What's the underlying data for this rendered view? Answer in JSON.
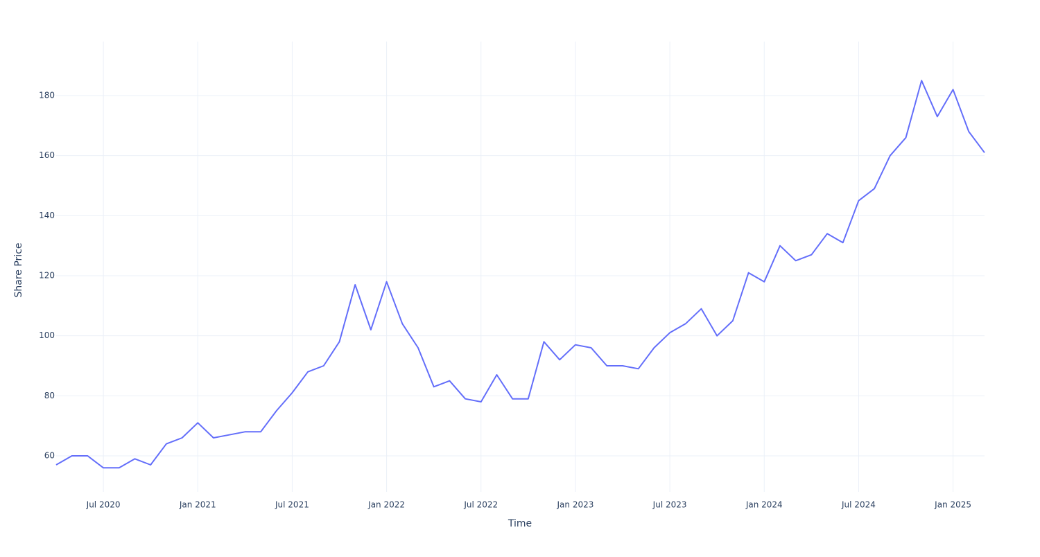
{
  "chart_data": {
    "type": "line",
    "x_label": "Time",
    "y_label": "Share Price",
    "x": [
      "2020-04",
      "2020-05",
      "2020-06",
      "2020-07",
      "2020-08",
      "2020-09",
      "2020-10",
      "2020-11",
      "2020-12",
      "2021-01",
      "2021-02",
      "2021-03",
      "2021-04",
      "2021-05",
      "2021-06",
      "2021-07",
      "2021-08",
      "2021-09",
      "2021-10",
      "2021-11",
      "2021-12",
      "2022-01",
      "2022-02",
      "2022-03",
      "2022-04",
      "2022-05",
      "2022-06",
      "2022-07",
      "2022-08",
      "2022-09",
      "2022-10",
      "2022-11",
      "2022-12",
      "2023-01",
      "2023-02",
      "2023-03",
      "2023-04",
      "2023-05",
      "2023-06",
      "2023-07",
      "2023-08",
      "2023-09",
      "2023-10",
      "2023-11",
      "2023-12",
      "2024-01",
      "2024-02",
      "2024-03",
      "2024-04",
      "2024-05",
      "2024-06",
      "2024-07",
      "2024-08",
      "2024-09",
      "2024-10",
      "2024-11",
      "2024-12",
      "2025-01",
      "2025-02",
      "2025-03"
    ],
    "values": [
      57,
      60,
      60,
      56,
      56,
      59,
      57,
      64,
      66,
      71,
      66,
      67,
      68,
      68,
      75,
      81,
      88,
      90,
      98,
      117,
      102,
      118,
      104,
      96,
      83,
      85,
      79,
      78,
      87,
      79,
      79,
      98,
      92,
      97,
      96,
      90,
      90,
      89,
      96,
      101,
      104,
      109,
      100,
      105,
      121,
      118,
      130,
      125,
      127,
      134,
      131,
      145,
      149,
      160,
      166,
      185,
      173,
      182,
      168,
      161
    ],
    "color": "#636efa",
    "xlim": [
      "2020-04",
      "2025-03"
    ],
    "xticks": [
      {
        "value": "2020-07",
        "label": "Jul 2020"
      },
      {
        "value": "2021-01",
        "label": "Jan 2021"
      },
      {
        "value": "2021-07",
        "label": "Jul 2021"
      },
      {
        "value": "2022-01",
        "label": "Jan 2022"
      },
      {
        "value": "2022-07",
        "label": "Jul 2022"
      },
      {
        "value": "2023-01",
        "label": "Jan 2023"
      },
      {
        "value": "2023-07",
        "label": "Jul 2023"
      },
      {
        "value": "2024-01",
        "label": "Jan 2024"
      },
      {
        "value": "2024-07",
        "label": "Jul 2024"
      },
      {
        "value": "2025-01",
        "label": "Jan 2025"
      }
    ],
    "ylim": [
      48,
      198
    ],
    "yticks": [
      60,
      80,
      100,
      120,
      140,
      160,
      180
    ],
    "grid": true
  }
}
